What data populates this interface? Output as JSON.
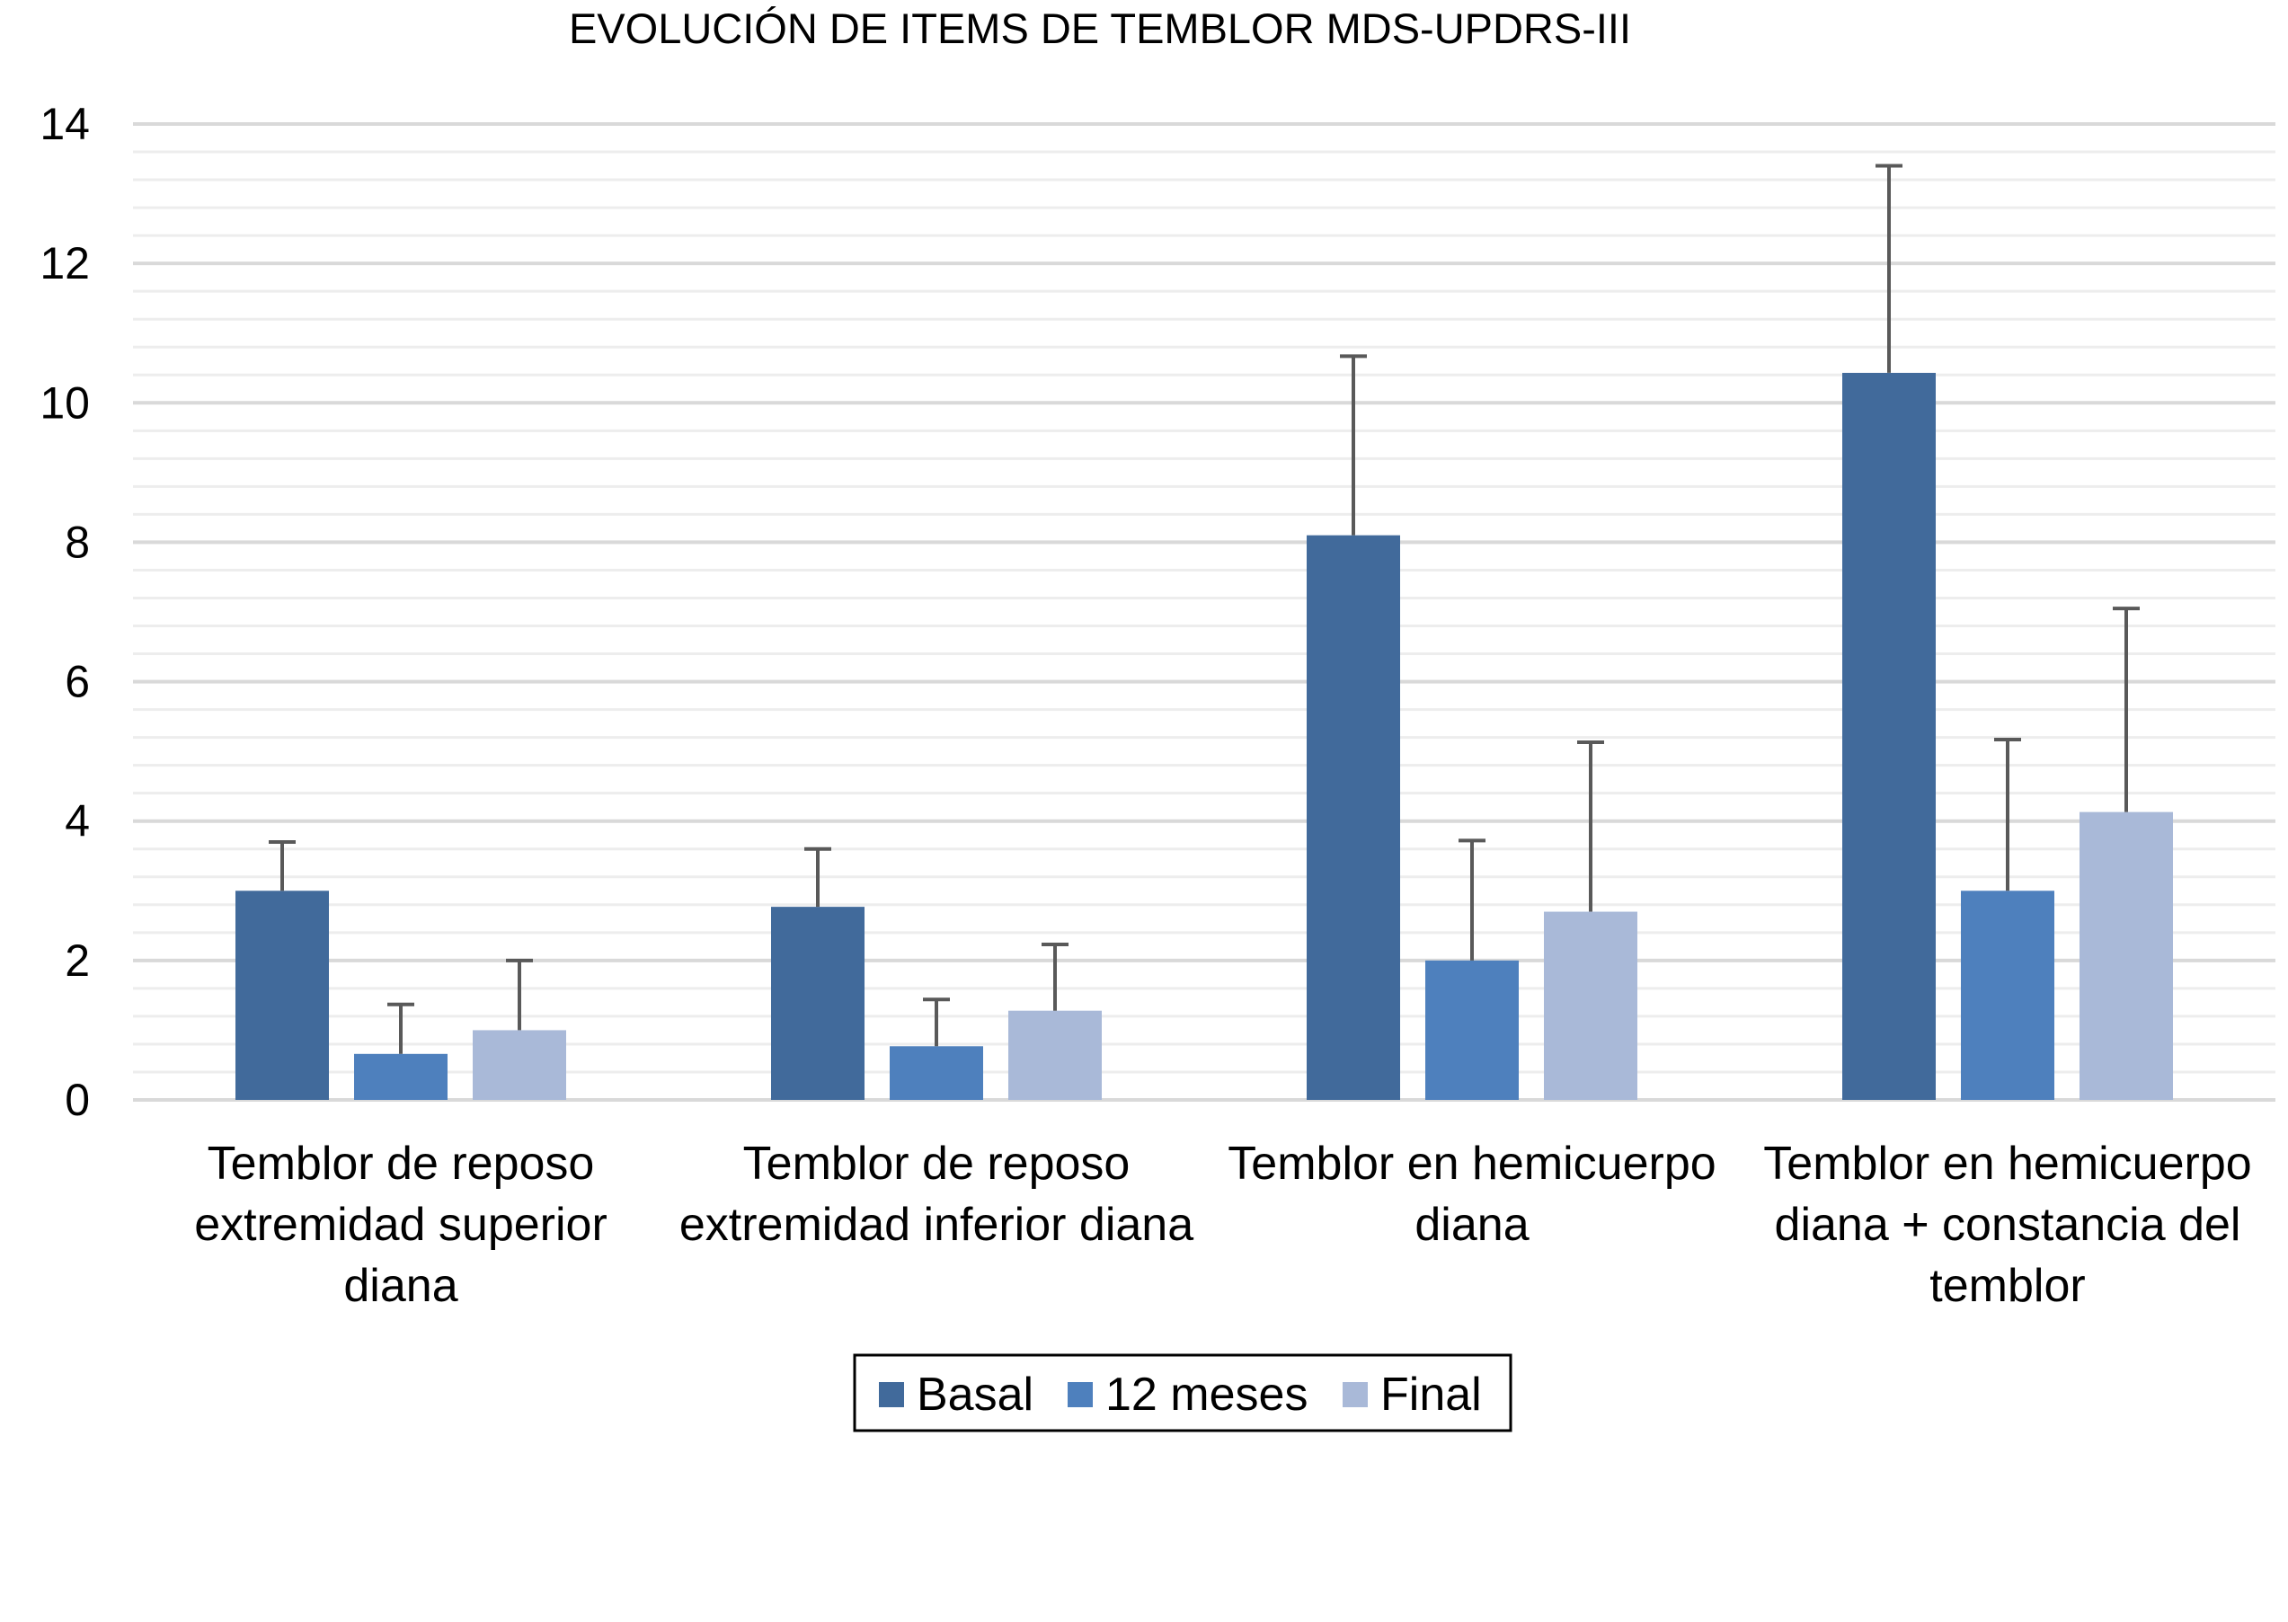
{
  "chart_data": {
    "type": "bar",
    "title": "EVOLUCIÓN DE ITEMS DE TEMBLOR MDS-UPDRS-III",
    "xlabel": "",
    "ylabel": "",
    "ylim": [
      0,
      14
    ],
    "yticks": [
      0,
      2,
      4,
      6,
      8,
      10,
      12,
      14
    ],
    "grid": true,
    "legend_position": "bottom",
    "categories": [
      [
        "Temblor de reposo",
        "extremidad superior",
        "diana"
      ],
      [
        "Temblor de reposo",
        "extremidad inferior diana"
      ],
      [
        "Temblor en hemicuerpo",
        "diana"
      ],
      [
        "Temblor en hemicuerpo",
        "diana + constancia del",
        "temblor"
      ]
    ],
    "series": [
      {
        "name": "Basal",
        "color": "#416A9B",
        "values": [
          3.0,
          2.77,
          8.1,
          10.43
        ],
        "error_upper": [
          3.7,
          3.6,
          10.67,
          13.4
        ]
      },
      {
        "name": "12 meses",
        "color": "#4E80BD",
        "values": [
          0.66,
          0.77,
          2.0,
          3.0
        ],
        "error_upper": [
          1.37,
          1.44,
          3.72,
          5.17
        ]
      },
      {
        "name": "Final",
        "color": "#A9B9D8",
        "values": [
          1.0,
          1.28,
          2.7,
          4.13
        ],
        "error_upper": [
          2.0,
          2.23,
          5.13,
          7.05
        ]
      }
    ]
  }
}
